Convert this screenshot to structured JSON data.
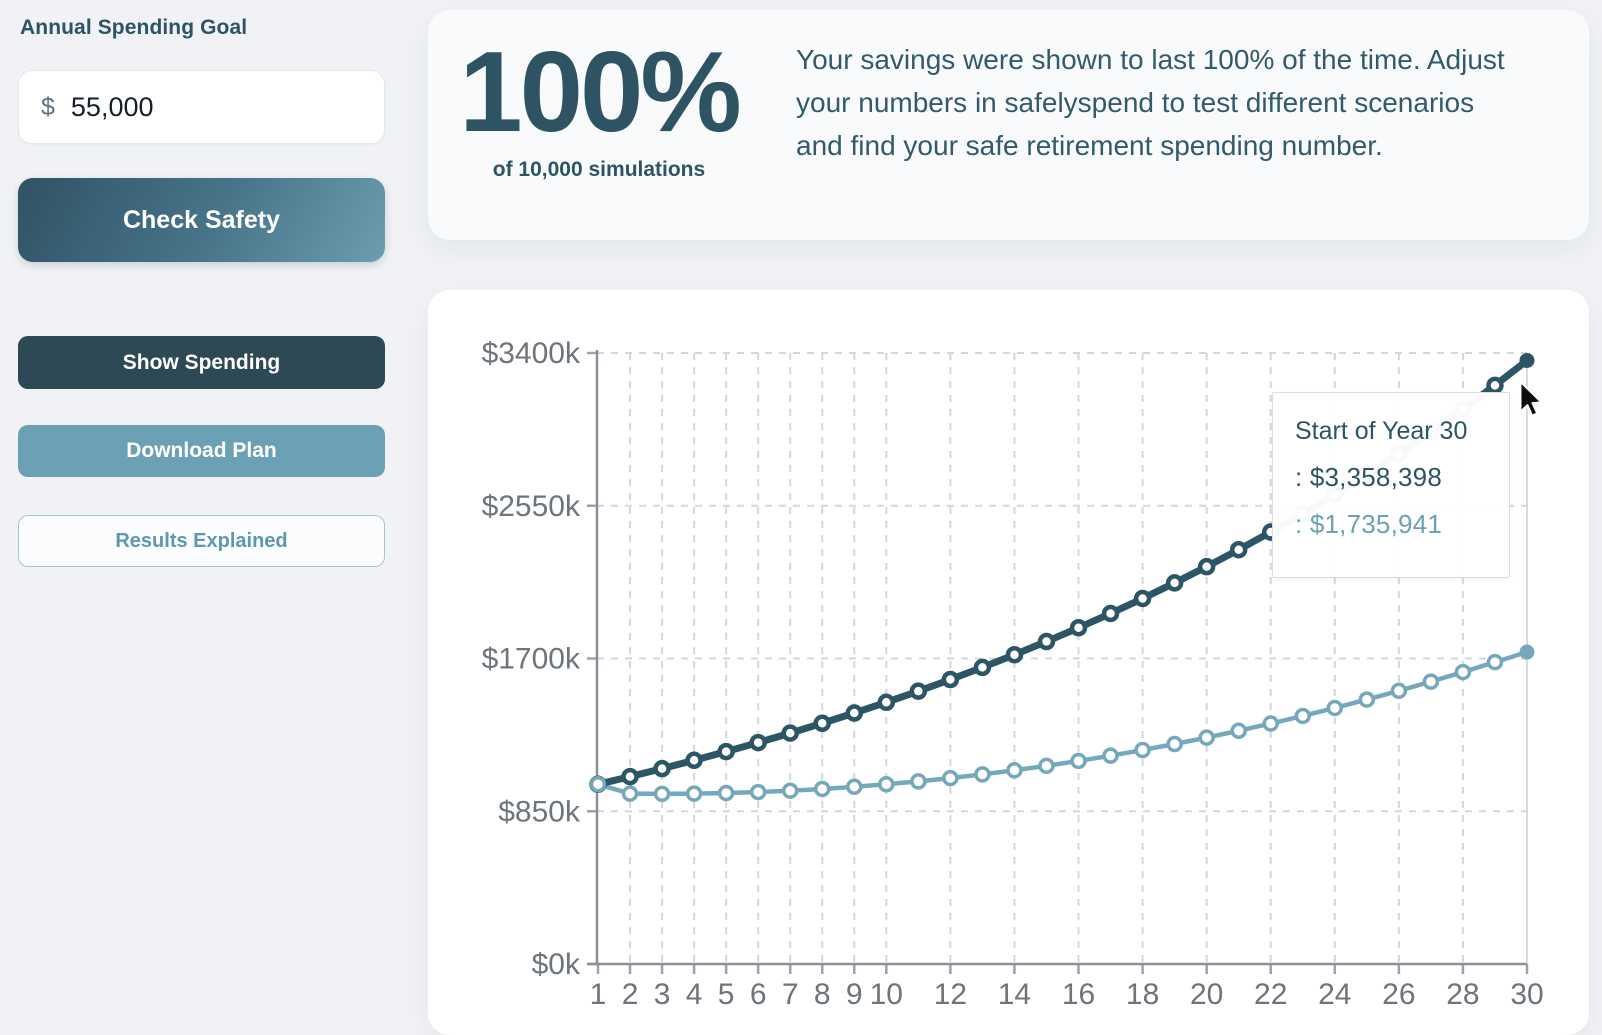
{
  "colors": {
    "accent_dark": "#2e5464",
    "accent_light": "#76a8bc",
    "button_dark": "#2d4955",
    "button_mid": "#6ca0b4",
    "axis_label": "#6e747c"
  },
  "sidebar": {
    "spending_goal_label": "Annual Spending Goal",
    "currency_symbol": "$",
    "spending_goal_value": "55,000",
    "check_safety_label": "Check Safety",
    "show_spending_label": "Show Spending",
    "download_plan_label": "Download Plan",
    "results_explained_label": "Results Explained"
  },
  "summary_card": {
    "percentage": "100%",
    "caption": "of 10,000 simulations",
    "description": "Your savings were shown to last 100% of the time. Adjust your numbers in safelyspend to test different scenarios and find your safe retirement spending number."
  },
  "chart_card": {
    "tooltip": {
      "title": "Start of Year 30",
      "rows": [
        {
          "prefix": ": ",
          "value": "$3,358,398",
          "color": "#2e5464"
        },
        {
          "prefix": ": ",
          "value": "$1,735,941",
          "color": "#6ca0b6"
        }
      ]
    }
  },
  "chart_data": {
    "type": "line",
    "title": "",
    "xlabel": "",
    "ylabel": "",
    "x": [
      1,
      2,
      3,
      4,
      5,
      6,
      7,
      8,
      9,
      10,
      11,
      12,
      13,
      14,
      15,
      16,
      17,
      18,
      19,
      20,
      21,
      22,
      23,
      24,
      25,
      26,
      27,
      28,
      29,
      30
    ],
    "x_labeled_ticks": [
      1,
      2,
      3,
      4,
      5,
      6,
      7,
      8,
      9,
      10,
      12,
      14,
      16,
      18,
      20,
      22,
      24,
      26,
      28,
      30
    ],
    "y_ticks_thousands": [
      0,
      850,
      1700,
      2550,
      3400
    ],
    "y_tick_labels": [
      "$0k",
      "$850k",
      "$1700k",
      "$2550k",
      "$3400k"
    ],
    "ylim_thousands": [
      0,
      3400
    ],
    "grid": "dashed",
    "legend": "none",
    "hovered_x": 30,
    "series": [
      {
        "id": "upper-balance",
        "label": "",
        "color": "#2c5566",
        "final_value_label": "$3,358,398",
        "values_thousands": [
          1000,
          1042.7,
          1087.1,
          1133.5,
          1181.8,
          1232.2,
          1284.8,
          1339.6,
          1396.7,
          1456.2,
          1518.3,
          1583.1,
          1650.6,
          1721.0,
          1794.4,
          1870.9,
          1950.7,
          2033.9,
          2120.6,
          2211.1,
          2305.4,
          2403.7,
          2506.2,
          2613.1,
          2724.5,
          2840.7,
          2961.9,
          3088.2,
          3219.9,
          3358.398
        ]
      },
      {
        "id": "lower-balance",
        "label": "",
        "color": "#76a8bc",
        "final_value_label": "$1,735,941",
        "values_thousands": [
          1000,
          948.1,
          947.0,
          948.1,
          951.3,
          956.7,
          964.3,
          974.1,
          986.0,
          1000.0,
          1016.2,
          1034.6,
          1055.2,
          1077.9,
          1102.8,
          1129.9,
          1159.2,
          1190.6,
          1224.2,
          1260.0,
          1297.9,
          1338.1,
          1380.3,
          1424.8,
          1471.4,
          1520.2,
          1571.2,
          1624.4,
          1679.7,
          1735.941
        ]
      }
    ]
  }
}
